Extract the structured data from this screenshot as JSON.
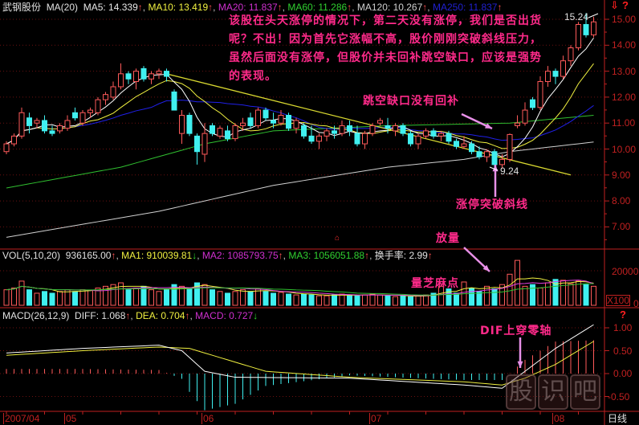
{
  "header": {
    "stock_name": "武钢股份",
    "main_indicator": "MA(20)",
    "ma5": "MA5: 14.339",
    "ma10": "MA10: 13.419",
    "ma20": "MA20: 11.837",
    "ma60": "MA60: 11.286",
    "ma120": "MA120: 10.267",
    "ma250": "MA250: 11.837",
    "vol_title": "VOL(5,10,20)",
    "vol_value": "936165.00",
    "vol_ma1": "MA1: 910039.81",
    "vol_ma2": "MA2: 1085793.75",
    "vol_ma3": "MA3: 1056051.88",
    "turnover": "换手率: 2.99",
    "macd_title": "MACD(26,12,9)",
    "diff": "DIFF: 1.068",
    "dea": "DEA: 0.704",
    "macd": "MACD: 0.727",
    "up_arrow": "↑",
    "down_arrow": "↓",
    "comma": ","
  },
  "colors": {
    "up": "#ff5a5a",
    "down": "#40f0f0",
    "ma5": "#ffffff",
    "ma10": "#f0f040",
    "ma20": "#2020e8",
    "ma60": "#30c030",
    "ma120": "#d0d0d0",
    "trendline": "#d8d830",
    "annotation": "#ff2a8a",
    "arrow": "#e890e8",
    "axis": "#c02020",
    "vol_ma1": "#f0f040",
    "vol_ma2": "#e040e0",
    "vol_ma3": "#30c030"
  },
  "annotations": {
    "para": [
      "该股在头天涨停的情况下，第二天没有涨停，我们是否出货",
      "呢？不出！因为首先它涨幅不高，股价刚刚突破斜线压力，",
      "虽然后面没有涨停，但股价并未回补跳空缺口，应该是强势",
      "的表现。"
    ],
    "gap": "跳空缺口没有回补",
    "breakout": "涨停突破斜线",
    "volume_up": "放量",
    "volume_low": "量芝麻点",
    "dif_cross": "DIF上穿零轴",
    "high_label": "15.24",
    "low_label": "9.24"
  },
  "right_axis": {
    "price_ticks": [
      "15.00",
      "14.00",
      "13.00",
      "12.00",
      "11.00",
      "10.00",
      "9.00",
      "8.00",
      "7.00"
    ],
    "vol_tick": "20000",
    "vol_unit": "X100",
    "vol_zero": "0",
    "macd_ticks": [
      "1.00",
      "0.50",
      "0.00",
      "-0.50"
    ],
    "period": "日线",
    "icons": [
      "download-arrow-icon",
      "help-icon"
    ]
  },
  "watermark": [
    "股",
    "识",
    "吧"
  ],
  "chart_data": {
    "type": "candlestick",
    "price_ylim": [
      6.5,
      15.6
    ],
    "price_ticks": [
      7,
      8,
      9,
      10,
      11,
      12,
      13,
      14,
      15
    ],
    "date_ticks": [
      {
        "label": "2007/04",
        "index": 0
      },
      {
        "label": "05",
        "index": 8
      },
      {
        "label": "06",
        "index": 26
      },
      {
        "label": "07",
        "index": 48
      },
      {
        "label": "08",
        "index": 72
      }
    ],
    "candles": [
      [
        9.9,
        10.3,
        9.8,
        10.2
      ],
      [
        10.2,
        10.6,
        10.1,
        10.5
      ],
      [
        10.5,
        11.6,
        10.4,
        11.4
      ],
      [
        11.2,
        11.4,
        10.6,
        10.9
      ],
      [
        11.0,
        11.2,
        10.8,
        11.1
      ],
      [
        11.1,
        11.3,
        10.6,
        10.7
      ],
      [
        10.7,
        10.9,
        10.5,
        10.6
      ],
      [
        10.7,
        11.0,
        10.6,
        10.9
      ],
      [
        10.8,
        11.3,
        10.7,
        11.1
      ],
      [
        11.4,
        11.6,
        11.1,
        11.2
      ],
      [
        11.0,
        11.5,
        10.9,
        11.4
      ],
      [
        11.4,
        11.6,
        11.2,
        11.5
      ],
      [
        11.4,
        12.0,
        11.3,
        11.9
      ],
      [
        11.9,
        12.2,
        11.7,
        12.1
      ],
      [
        12.0,
        12.6,
        11.9,
        12.4
      ],
      [
        12.4,
        13.3,
        12.3,
        12.9
      ],
      [
        12.9,
        13.0,
        12.5,
        12.7
      ],
      [
        12.6,
        13.1,
        12.3,
        13.0
      ],
      [
        13.1,
        13.2,
        12.6,
        12.7
      ],
      [
        12.7,
        13.0,
        12.5,
        12.9
      ],
      [
        12.9,
        13.1,
        12.7,
        13.0
      ],
      [
        13.0,
        13.1,
        12.6,
        12.8
      ],
      [
        12.2,
        12.3,
        11.5,
        11.5
      ],
      [
        10.6,
        11.5,
        10.2,
        11.3
      ],
      [
        11.3,
        11.4,
        10.5,
        10.6
      ],
      [
        10.5,
        10.6,
        9.4,
        9.9
      ],
      [
        9.8,
        11.0,
        9.5,
        10.6
      ],
      [
        10.9,
        11.0,
        10.5,
        10.6
      ],
      [
        10.5,
        10.9,
        10.4,
        10.8
      ],
      [
        10.7,
        10.9,
        10.3,
        10.4
      ],
      [
        10.4,
        11.0,
        10.3,
        10.9
      ],
      [
        10.9,
        11.2,
        10.7,
        11.0
      ],
      [
        11.2,
        11.4,
        10.8,
        10.9
      ],
      [
        10.9,
        11.6,
        10.8,
        11.5
      ],
      [
        11.5,
        11.6,
        11.1,
        11.2
      ],
      [
        11.1,
        11.4,
        10.8,
        11.0
      ],
      [
        11.0,
        11.5,
        10.9,
        11.3
      ],
      [
        11.3,
        11.4,
        10.7,
        10.8
      ],
      [
        10.8,
        11.2,
        10.6,
        11.1
      ],
      [
        10.9,
        11.0,
        10.4,
        10.5
      ],
      [
        10.5,
        10.9,
        10.2,
        10.3
      ],
      [
        10.3,
        10.6,
        10.0,
        10.5
      ],
      [
        10.5,
        10.8,
        10.3,
        10.7
      ],
      [
        10.7,
        10.9,
        10.4,
        10.6
      ],
      [
        10.6,
        11.1,
        10.5,
        10.9
      ],
      [
        10.9,
        11.1,
        10.5,
        10.7
      ],
      [
        10.6,
        10.9,
        10.1,
        10.2
      ],
      [
        10.2,
        10.7,
        10.0,
        10.6
      ],
      [
        10.6,
        11.0,
        10.5,
        10.9
      ],
      [
        11.0,
        11.2,
        10.9,
        11.1
      ],
      [
        10.9,
        11.2,
        10.6,
        10.8
      ],
      [
        10.7,
        11.0,
        10.5,
        10.9
      ],
      [
        10.9,
        11.0,
        10.5,
        10.6
      ],
      [
        10.6,
        10.7,
        10.1,
        10.2
      ],
      [
        10.2,
        10.6,
        10.0,
        10.5
      ],
      [
        10.5,
        10.8,
        10.4,
        10.7
      ],
      [
        10.7,
        10.8,
        10.4,
        10.5
      ],
      [
        10.5,
        10.7,
        10.3,
        10.6
      ],
      [
        10.6,
        10.7,
        10.2,
        10.3
      ],
      [
        10.3,
        10.4,
        10.0,
        10.1
      ],
      [
        10.1,
        10.5,
        10.0,
        10.2
      ],
      [
        10.2,
        10.3,
        9.8,
        9.9
      ],
      [
        9.9,
        10.1,
        9.6,
        9.7
      ],
      [
        9.7,
        10.0,
        9.5,
        9.9
      ],
      [
        9.9,
        10.0,
        9.3,
        9.4
      ],
      [
        9.4,
        9.8,
        9.24,
        9.6
      ],
      [
        9.6,
        10.6,
        9.5,
        10.56
      ],
      [
        10.9,
        11.3,
        10.8,
        11.0
      ],
      [
        11.0,
        11.8,
        10.9,
        11.5
      ],
      [
        11.9,
        12.0,
        11.5,
        11.6
      ],
      [
        11.6,
        12.8,
        11.5,
        12.6
      ],
      [
        12.6,
        13.2,
        12.4,
        13.0
      ],
      [
        13.0,
        13.1,
        12.5,
        12.8
      ],
      [
        12.8,
        13.6,
        12.7,
        13.4
      ],
      [
        13.4,
        14.0,
        13.2,
        13.9
      ],
      [
        13.9,
        14.9,
        13.8,
        14.8
      ],
      [
        14.8,
        15.24,
        14.3,
        14.4
      ],
      [
        14.4,
        15.1,
        14.3,
        14.9
      ]
    ],
    "ma60_points": [
      [
        0,
        8.5
      ],
      [
        15,
        9.3
      ],
      [
        26,
        10.2
      ],
      [
        35,
        10.7
      ],
      [
        50,
        10.9
      ],
      [
        66,
        11.0
      ],
      [
        77,
        11.3
      ]
    ],
    "ma120_points": [
      [
        0,
        6.6
      ],
      [
        20,
        7.6
      ],
      [
        35,
        8.6
      ],
      [
        50,
        9.3
      ],
      [
        60,
        9.6
      ],
      [
        66,
        9.9
      ],
      [
        77,
        10.27
      ]
    ],
    "trendline": [
      [
        21,
        12.9
      ],
      [
        74,
        9.0
      ]
    ],
    "volume_ylim": [
      0,
      28000
    ],
    "volume": [
      9000,
      10000,
      14000,
      9000,
      7000,
      8000,
      7000,
      8000,
      9000,
      8000,
      9000,
      8500,
      10000,
      11000,
      12000,
      13000,
      9000,
      10000,
      11000,
      9000,
      8000,
      9000,
      12000,
      11000,
      10000,
      13000,
      12000,
      9000,
      8000,
      7000,
      8000,
      9000,
      8000,
      9500,
      8000,
      7000,
      7500,
      6500,
      6000,
      6500,
      6000,
      5500,
      5500,
      6000,
      6500,
      6000,
      5500,
      6000,
      6500,
      6000,
      5500,
      5000,
      5500,
      5000,
      5500,
      6000,
      7000,
      11000,
      9500,
      7000,
      13500,
      10000,
      8000,
      11000,
      9500,
      12000,
      18000,
      26000,
      11000,
      12000,
      10000,
      13000,
      15000,
      14500,
      12500,
      14000,
      12000,
      11000
    ],
    "macd_ylim": [
      -0.8,
      1.25
    ],
    "diff_points": [
      [
        0,
        0.45
      ],
      [
        10,
        0.55
      ],
      [
        20,
        0.62
      ],
      [
        23,
        0.5
      ],
      [
        26,
        0.05
      ],
      [
        30,
        -0.08
      ],
      [
        45,
        -0.1
      ],
      [
        60,
        -0.25
      ],
      [
        65,
        -0.32
      ],
      [
        68,
        0.05
      ],
      [
        72,
        0.55
      ],
      [
        77,
        1.068
      ]
    ],
    "dea_points": [
      [
        0,
        0.4
      ],
      [
        10,
        0.5
      ],
      [
        20,
        0.58
      ],
      [
        24,
        0.55
      ],
      [
        28,
        0.35
      ],
      [
        34,
        0.05
      ],
      [
        45,
        -0.08
      ],
      [
        60,
        -0.18
      ],
      [
        65,
        -0.25
      ],
      [
        68,
        -0.1
      ],
      [
        72,
        0.2
      ],
      [
        77,
        0.704
      ]
    ]
  }
}
